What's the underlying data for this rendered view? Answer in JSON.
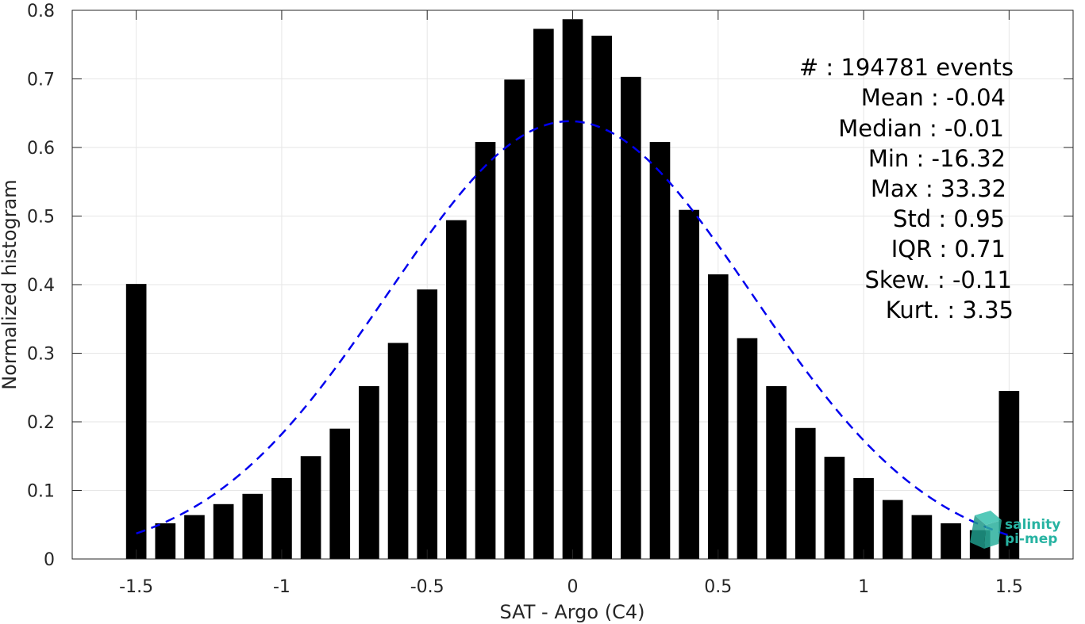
{
  "chart_data": {
    "type": "bar",
    "xlabel": "SAT - Argo (C4)",
    "ylabel": "Normalized histogram",
    "xlim": [
      -1.72,
      1.72
    ],
    "ylim": [
      0,
      0.8
    ],
    "x_ticks": [
      -1.5,
      -1,
      -0.5,
      0,
      0.5,
      1,
      1.5
    ],
    "x_tick_labels": [
      "-1.5",
      "-1",
      "-0.5",
      "0",
      "0.5",
      "1",
      "1.5"
    ],
    "y_ticks": [
      0,
      0.1,
      0.2,
      0.3,
      0.4,
      0.5,
      0.6,
      0.7,
      0.8
    ],
    "y_tick_labels": [
      "0",
      "0.1",
      "0.2",
      "0.3",
      "0.4",
      "0.5",
      "0.6",
      "0.7",
      "0.8"
    ],
    "grid": true,
    "bar_color": "#000000",
    "bar_width": 0.07,
    "x": [
      -1.5,
      -1.4,
      -1.3,
      -1.2,
      -1.1,
      -1.0,
      -0.9,
      -0.8,
      -0.7,
      -0.6,
      -0.5,
      -0.4,
      -0.3,
      -0.2,
      -0.1,
      0.0,
      0.1,
      0.2,
      0.3,
      0.4,
      0.5,
      0.6,
      0.7,
      0.8,
      0.9,
      1.0,
      1.1,
      1.2,
      1.3,
      1.4,
      1.5
    ],
    "values": [
      0.401,
      0.052,
      0.064,
      0.08,
      0.095,
      0.118,
      0.15,
      0.19,
      0.252,
      0.315,
      0.393,
      0.494,
      0.608,
      0.699,
      0.773,
      0.787,
      0.763,
      0.703,
      0.608,
      0.509,
      0.415,
      0.322,
      0.252,
      0.191,
      0.149,
      0.118,
      0.086,
      0.064,
      0.052,
      0.042,
      0.245
    ],
    "fit_curve": {
      "type": "gaussian",
      "style": "dashed",
      "color": "#0000ee",
      "mean": -0.01,
      "std": 0.625,
      "x_range": [
        -1.5,
        1.5
      ]
    },
    "annotations": [
      "#  : 194781 events",
      "Mean : -0.04",
      "Median : -0.01",
      "Min : -16.32",
      "Max : 33.32",
      "Std : 0.95",
      "IQR : 0.71",
      "Skew. : -0.11",
      "Kurt. : 3.35"
    ]
  },
  "logo": {
    "line1": "salinity",
    "line2": "pi-mep",
    "color": "#27b3a2"
  }
}
